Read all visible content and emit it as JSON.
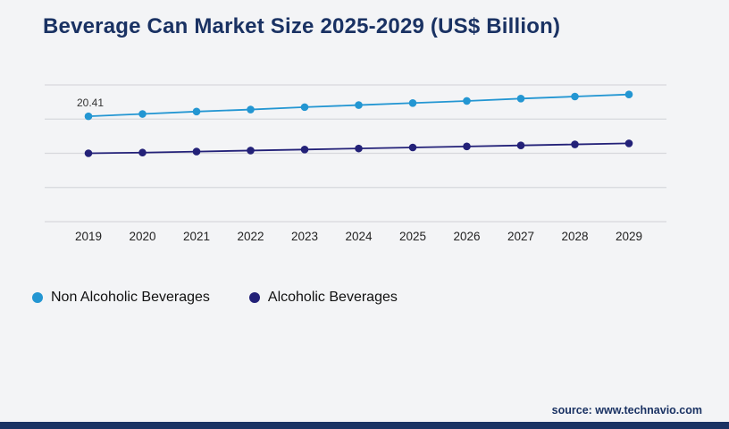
{
  "page": {
    "title": "Beverage Can Market Size 2025-2029 (US$ Billion)",
    "source": "source: www.technavio.com",
    "background_color": "#f3f4f6",
    "accent_color": "#1a3263",
    "gridline_color": "#d7d8dc"
  },
  "chart_data": {
    "type": "line",
    "title": "Beverage Can Market Size 2025-2029 (US$ Billion)",
    "categories": [
      "2019",
      "2020",
      "2021",
      "2022",
      "2023",
      "2024",
      "2025",
      "2026",
      "2027",
      "2028",
      "2029"
    ],
    "series": [
      {
        "name": "Non Alcoholic Beverages",
        "color": "#2396d2",
        "values": [
          20.41,
          20.75,
          21.1,
          21.4,
          21.75,
          22.05,
          22.35,
          22.65,
          23.0,
          23.3,
          23.6
        ]
      },
      {
        "name": "Alcoholic Beverages",
        "color": "#232178",
        "values": [
          15.0,
          15.1,
          15.25,
          15.4,
          15.55,
          15.7,
          15.85,
          16.0,
          16.15,
          16.3,
          16.45
        ]
      }
    ],
    "annotations": [
      {
        "text": "20.41",
        "series": "Non Alcoholic Beverages",
        "category": "2019"
      }
    ],
    "xlabel": "",
    "ylabel": "",
    "ylim": [
      5,
      25
    ],
    "grid": true,
    "gridline_count": 5,
    "y_axis_labels_visible": false,
    "legend_position": "bottom"
  },
  "legend": {
    "items": [
      {
        "label": "Non Alcoholic Beverages",
        "color": "#2396d2"
      },
      {
        "label": "Alcoholic Beverages",
        "color": "#232178"
      }
    ]
  }
}
